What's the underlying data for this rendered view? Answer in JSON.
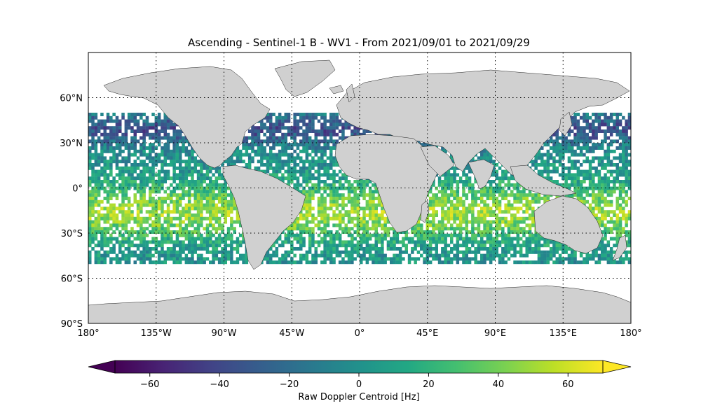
{
  "title": "Ascending - Sentinel-1 B - WV1 - From 2021/09/01 to 2021/09/29",
  "map": {
    "projection": "PlateCarree",
    "extent": {
      "lon": [
        -180,
        180
      ],
      "lat": [
        -90,
        90
      ]
    },
    "gridlines": "dotted",
    "lat_ticks": [
      {
        "value": 60,
        "label": "60°N"
      },
      {
        "value": 30,
        "label": "30°N"
      },
      {
        "value": 0,
        "label": "0°"
      },
      {
        "value": -30,
        "label": "30°S"
      },
      {
        "value": -60,
        "label": "60°S"
      },
      {
        "value": -90,
        "label": "90°S"
      }
    ],
    "lon_ticks": [
      {
        "value": -180,
        "label": "180°"
      },
      {
        "value": -135,
        "label": "135°W"
      },
      {
        "value": -90,
        "label": "90°W"
      },
      {
        "value": -45,
        "label": "45°W"
      },
      {
        "value": 0,
        "label": "0°"
      },
      {
        "value": 45,
        "label": "45°E"
      },
      {
        "value": 90,
        "label": "90°E"
      },
      {
        "value": 135,
        "label": "135°E"
      },
      {
        "value": 180,
        "label": "180°"
      }
    ],
    "land_color": "#d0d0d0",
    "coast_color": "#000000",
    "data_lat_range": [
      -50,
      50
    ]
  },
  "colorbar": {
    "label": "Raw Doppler Centroid [Hz]",
    "colormap": "viridis",
    "range": [
      -70,
      70
    ],
    "extend": "both",
    "ticks": [
      -60,
      -40,
      -20,
      0,
      20,
      40,
      60
    ],
    "tick_labels": [
      "−60",
      "−40",
      "−20",
      "0",
      "20",
      "40",
      "60"
    ]
  }
}
